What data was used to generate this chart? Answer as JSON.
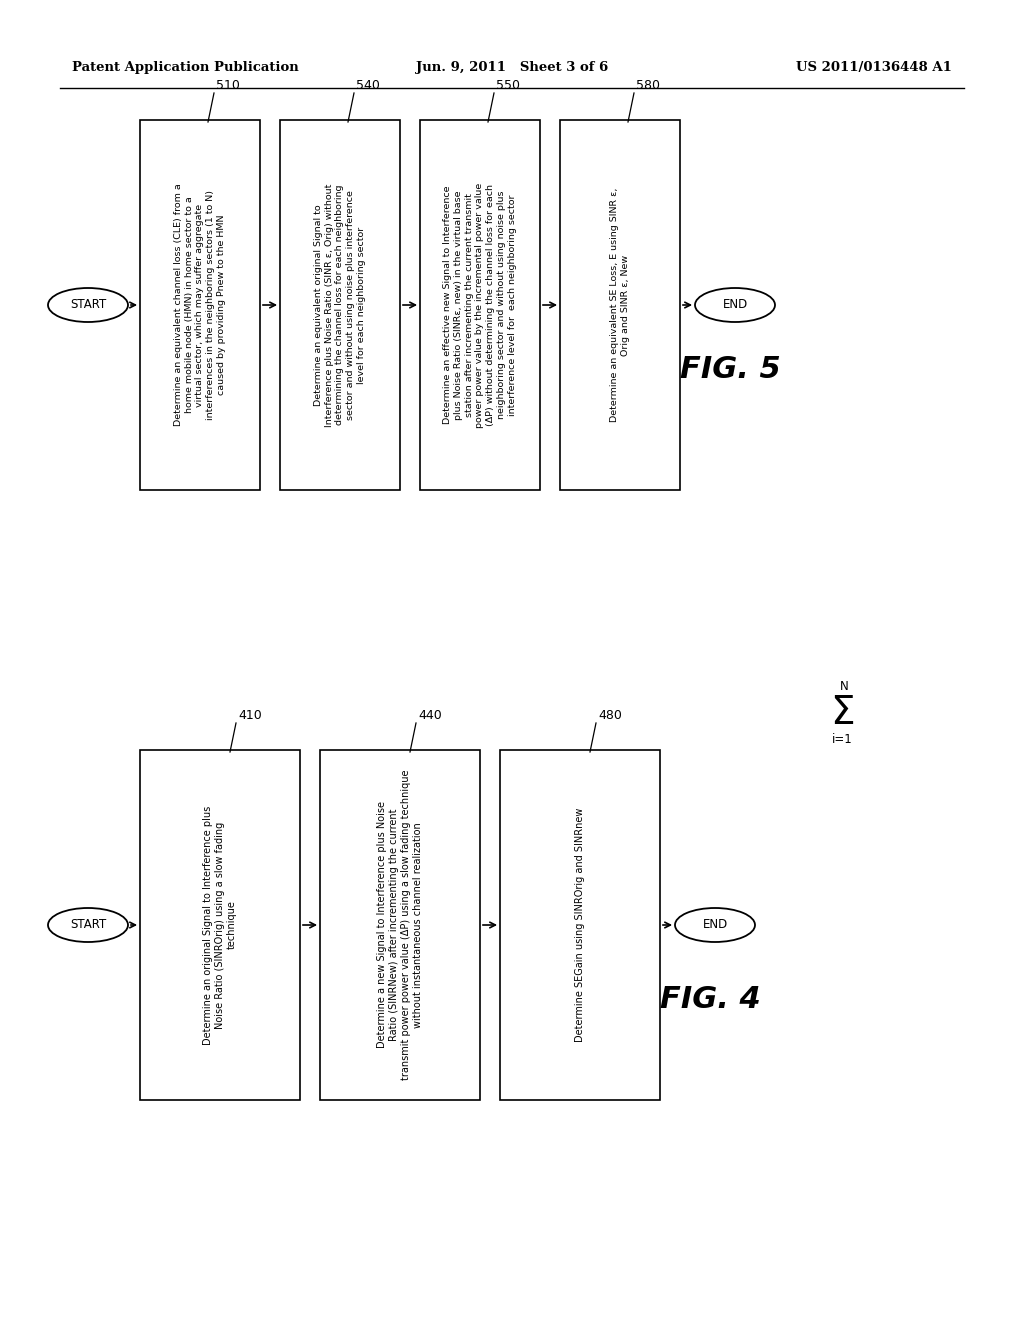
{
  "header_left": "Patent Application Publication",
  "header_center": "Jun. 9, 2011   Sheet 3 of 6",
  "header_right": "US 2011/0136448 A1",
  "bg_color": "#ffffff",
  "fig5_title": "FIG. 5",
  "fig5_start_label": "START",
  "fig5_end_label": "END",
  "fig5_boxes": [
    {
      "label": "510",
      "text": "Determine an equivalent channel loss (CLE) from a\nhome mobile node (HMN) in home sector to a\nvirtual sector, which may suffer aggregate\ninterferences in the neighboring sectors (1 to N)\ncaused by providing Pnew to the HMN"
    },
    {
      "label": "540",
      "text": "Determine an equivalent original Signal to\nInterference plus Noise Ratio (SINR ε, Orig) without\ndetermining the channel loss for each neighboring\nsector and without using noise plus interference\nlevel for each neighboring sector"
    },
    {
      "label": "550",
      "text": "Determine an effective new Signal to Interference\nplus Noise Ratio (SINRε, new) in the virtual base\nstation after incrementing the current transmit\npower power value by the incremental power value\n(ΔP) without determining the channel loss for each\nneighboring sector and without using noise plus\ninterference level for  each neighboring sector"
    },
    {
      "label": "580",
      "text": "Determine an equivalent SE Loss, E using SINR ε,\nOrig and SINR ε, New"
    }
  ],
  "fig4_title": "FIG. 4",
  "fig4_start_label": "START",
  "fig4_end_label": "END",
  "fig4_sigma_n": "N",
  "fig4_sigma_sym": "Σ",
  "fig4_sigma_sub": "i=1",
  "fig4_boxes": [
    {
      "label": "410",
      "text": "Determine an original Signal to Interference plus\nNoise Ratio (SINROrig) using a slow fading\ntechnique"
    },
    {
      "label": "440",
      "text": "Determine a new Signal to Interference plus Noise\nRatio (SINRNew) after incrementing the current\ntransmit power power value (ΔP) using a slow fading technique\nwithout instantaneous channel realization"
    },
    {
      "label": "480",
      "text": "Determine SEGain using SINROrig and SINRnew"
    }
  ]
}
